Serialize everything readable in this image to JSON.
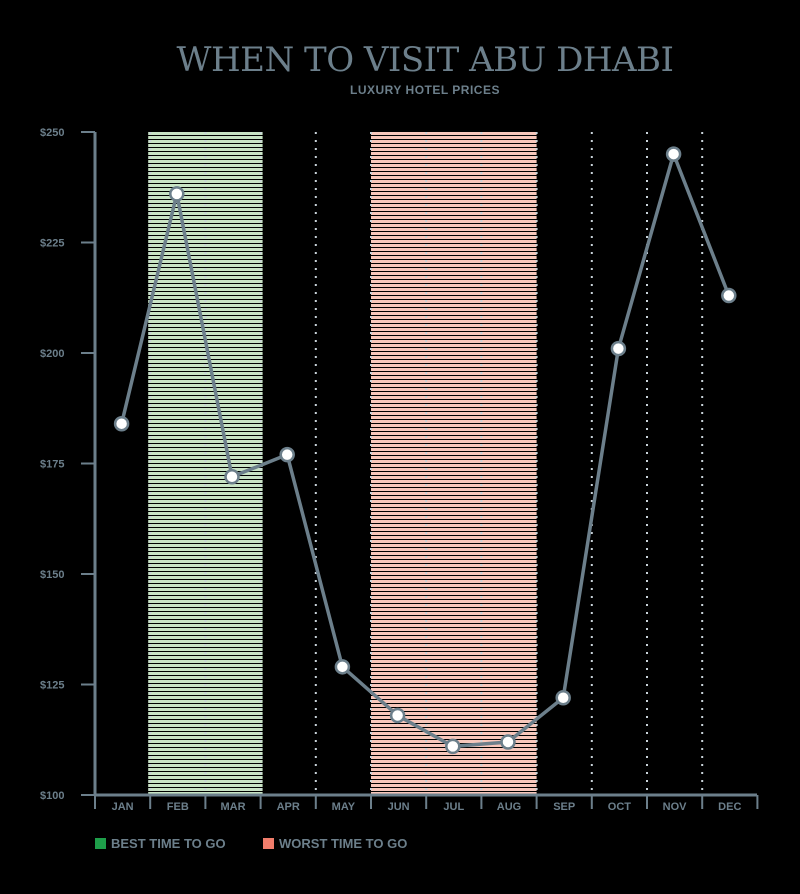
{
  "chart_data": {
    "type": "line",
    "title": "WHEN TO VISIT ABU DHABI",
    "subtitle": "LUXURY HOTEL PRICES",
    "xlabel": "",
    "ylabel": "",
    "categories": [
      "JAN",
      "FEB",
      "MAR",
      "APR",
      "MAY",
      "JUN",
      "JUL",
      "AUG",
      "SEP",
      "OCT",
      "NOV",
      "DEC"
    ],
    "series": [
      {
        "values": [
          184,
          236,
          172,
          177,
          129,
          118,
          111,
          112,
          122,
          201,
          245,
          213
        ]
      }
    ],
    "ylim": [
      100,
      250
    ],
    "yticks": [
      100,
      125,
      150,
      175,
      200,
      225,
      250
    ],
    "ytick_labels": [
      "$100",
      "$125",
      "$150",
      "$175",
      "$200",
      "$225",
      "$250"
    ],
    "grid": "vertical dotted lines between months",
    "legend_position": "bottom-left",
    "highlight_bands": [
      {
        "label": "BEST TIME TO GO",
        "months": [
          "FEB",
          "MAR"
        ],
        "color": "#c9e4c5"
      },
      {
        "label": "WORST TIME TO GO",
        "months": [
          "JUN",
          "JUL",
          "AUG"
        ],
        "color": "#f8c7bb"
      }
    ],
    "legend": [
      {
        "label": "BEST TIME TO GO",
        "color": "#1e9e4a"
      },
      {
        "label": "WORST TIME TO GO",
        "color": "#f17d6b"
      }
    ],
    "colors": {
      "line": "#6c7f8b",
      "axis": "#6c7f8b",
      "marker_fill": "#ffffff",
      "background": "#000000"
    }
  }
}
